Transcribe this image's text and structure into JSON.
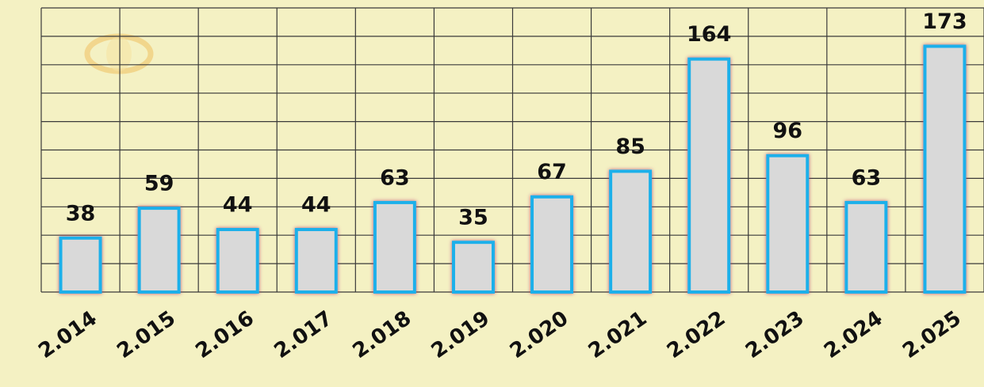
{
  "chart_data": {
    "type": "bar",
    "categories": [
      "2.014",
      "2.015",
      "2.016",
      "2.017",
      "2.018",
      "2.019",
      "2.020",
      "2.021",
      "2.022",
      "2.023",
      "2.024",
      "2.025"
    ],
    "values": [
      38,
      59,
      44,
      44,
      63,
      35,
      67,
      85,
      164,
      96,
      63,
      173
    ],
    "color": "#d9d9d9",
    "edge_color": "#1ab0ea",
    "ylim": [
      0,
      200
    ],
    "yticks": [
      0,
      20,
      40,
      60,
      80,
      100,
      120,
      140,
      160,
      180,
      200
    ],
    "grid": true
  }
}
